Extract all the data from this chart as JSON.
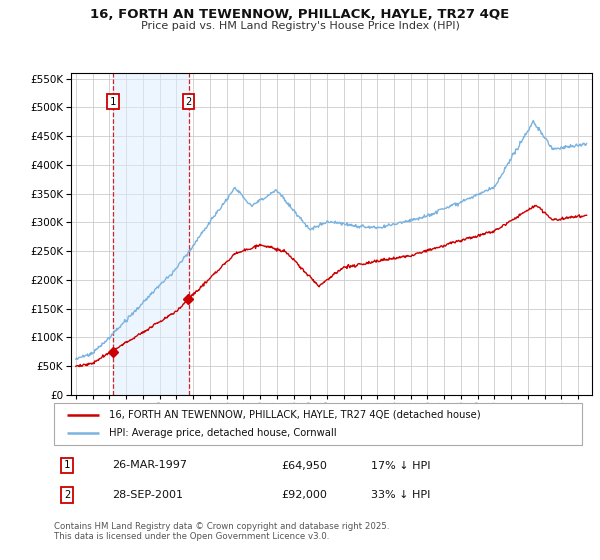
{
  "title": "16, FORTH AN TEWENNOW, PHILLACK, HAYLE, TR27 4QE",
  "subtitle": "Price paid vs. HM Land Registry's House Price Index (HPI)",
  "background_color": "#ffffff",
  "plot_bg_color": "#ffffff",
  "grid_color": "#cccccc",
  "hpi_color": "#7ab3e0",
  "price_color": "#cc0000",
  "purchase1_year": 1997.23,
  "purchase1_price": 64950,
  "purchase2_year": 2001.74,
  "purchase2_price": 92000,
  "legend_entry1": "16, FORTH AN TEWENNOW, PHILLACK, HAYLE, TR27 4QE (detached house)",
  "legend_entry2": "HPI: Average price, detached house, Cornwall",
  "footnote1": "Contains HM Land Registry data © Crown copyright and database right 2025.",
  "footnote2": "This data is licensed under the Open Government Licence v3.0.",
  "table_row1": [
    "1",
    "26-MAR-1997",
    "£64,950",
    "17% ↓ HPI"
  ],
  "table_row2": [
    "2",
    "28-SEP-2001",
    "£92,000",
    "33% ↓ HPI"
  ],
  "ylim": [
    0,
    560000
  ],
  "xlim": [
    1994.7,
    2025.8
  ],
  "span_color": "#ddeeff",
  "span_alpha": 0.5
}
